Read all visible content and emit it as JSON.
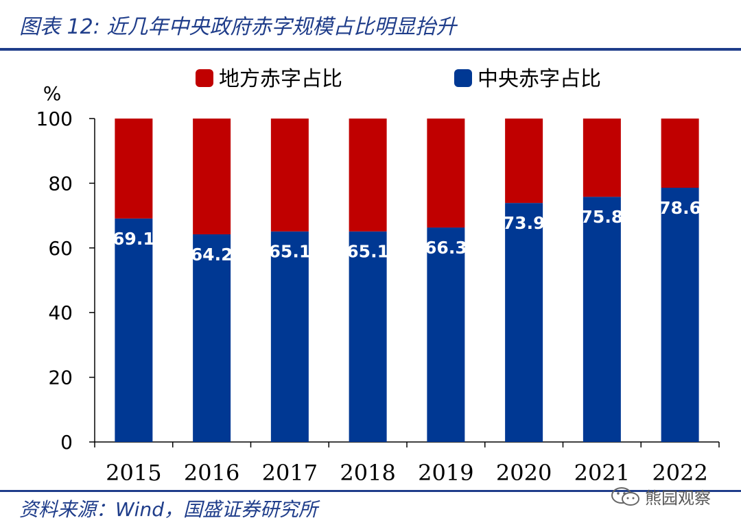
{
  "title": "图表 12:  近几年中央政府赤字规模占比明显抬升",
  "source": "资料来源：Wind，国盛证券研究所",
  "watermark": {
    "text": "熊园观察",
    "icon": "wechat-icon"
  },
  "colors": {
    "central": "#003893",
    "local": "#c00000",
    "rule": "#1f3d8a"
  },
  "chart_data": {
    "type": "bar",
    "stacked": true,
    "title": "近几年中央政府赤字规模占比明显抬升",
    "ylabel": "%",
    "xlabel": "",
    "ylim": [
      0,
      100
    ],
    "yticks": [
      0,
      20,
      40,
      60,
      80,
      100
    ],
    "categories": [
      "2015",
      "2016",
      "2017",
      "2018",
      "2019",
      "2020",
      "2021",
      "2022"
    ],
    "series": [
      {
        "name": "中央赤字占比",
        "values": [
          69.1,
          64.2,
          65.1,
          65.1,
          66.3,
          73.9,
          75.8,
          78.6
        ],
        "labels": [
          "69.1",
          "64.2",
          "65.1",
          "65.1",
          "66.3",
          "73.9",
          "75.8",
          "78.6"
        ]
      },
      {
        "name": "地方赤字占比",
        "values": [
          30.9,
          35.8,
          34.9,
          34.9,
          33.7,
          26.1,
          24.2,
          21.4
        ]
      }
    ],
    "legend": {
      "position": "top",
      "order": [
        "地方赤字占比",
        "中央赤字占比"
      ]
    }
  }
}
